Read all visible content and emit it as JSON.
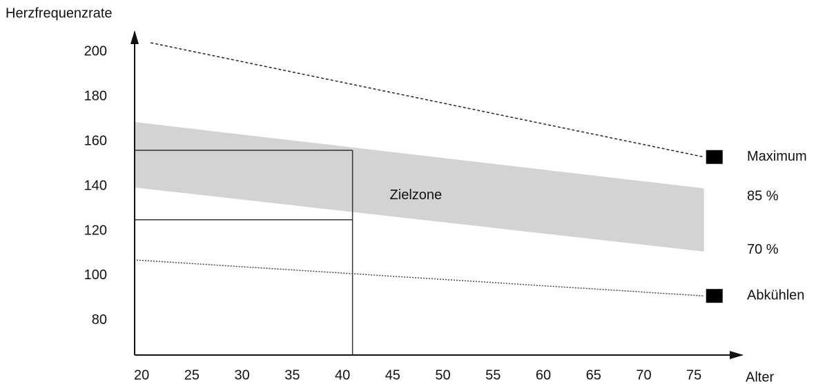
{
  "chart_data": {
    "type": "line",
    "y_label": "Herzfrequenzrate",
    "x_label": "Alter",
    "xlim": [
      19.3,
      79.8
    ],
    "ylim": [
      64.6,
      207.7
    ],
    "xticks": [
      20,
      25,
      30,
      35,
      40,
      45,
      50,
      55,
      60,
      65,
      70,
      75
    ],
    "yticks": [
      80,
      100,
      120,
      140,
      160,
      180,
      200
    ],
    "series": [
      {
        "name": "Maximum",
        "color": "#222222",
        "style": "dashed",
        "x": [
          20.9,
          76
        ],
        "values": [
          204,
          153
        ]
      },
      {
        "name": "Abkühlen",
        "color": "#444444",
        "style": "dotted",
        "x": [
          19.5,
          76
        ],
        "values": [
          107,
          91
        ]
      }
    ],
    "band": {
      "name": "Zielzone",
      "color": "#d3d3d3",
      "upper_label": "85 %",
      "lower_label": "70 %",
      "x": [
        19.3,
        76
      ],
      "upper": [
        168.6,
        139
      ],
      "lower": [
        139.4,
        110.8
      ]
    },
    "guide": {
      "x": 41,
      "y": [
        156,
        125
      ]
    }
  }
}
